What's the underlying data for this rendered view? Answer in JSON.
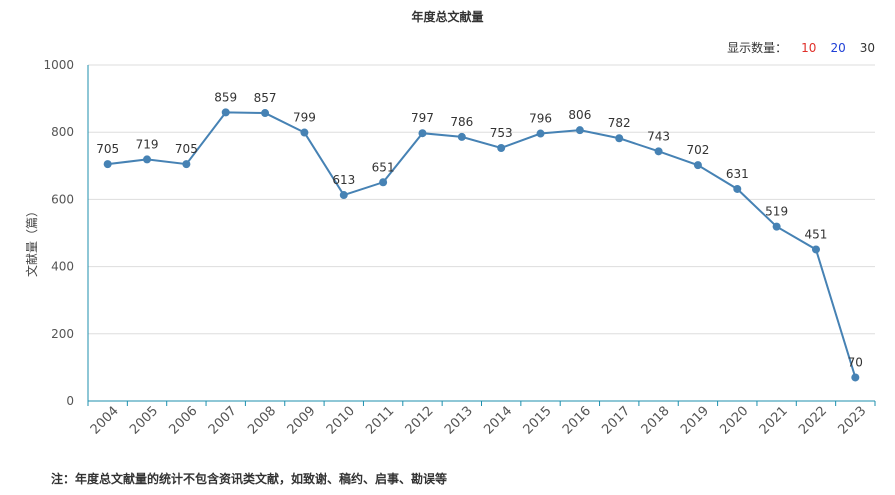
{
  "chart_data": {
    "type": "line",
    "title": "年度总文献量",
    "xlabel": "",
    "ylabel": "文献量（篇）",
    "categories": [
      "2004",
      "2005",
      "2006",
      "2007",
      "2008",
      "2009",
      "2010",
      "2011",
      "2012",
      "2013",
      "2014",
      "2015",
      "2016",
      "2017",
      "2018",
      "2019",
      "2020",
      "2021",
      "2022",
      "2023"
    ],
    "values": [
      705,
      719,
      705,
      859,
      857,
      799,
      613,
      651,
      797,
      786,
      753,
      796,
      806,
      782,
      743,
      702,
      631,
      519,
      451,
      70
    ],
    "ylim": [
      0,
      1000
    ],
    "yticks": [
      0,
      200,
      400,
      600,
      800,
      1000
    ],
    "grid": true,
    "series_color": "#4682b4"
  },
  "controls": {
    "label": "显示数量：",
    "options": [
      "10",
      "20",
      "30"
    ]
  },
  "footnote": "注：年度总文献量的统计不包含资讯类文献，如致谢、稿约、启事、勘误等"
}
